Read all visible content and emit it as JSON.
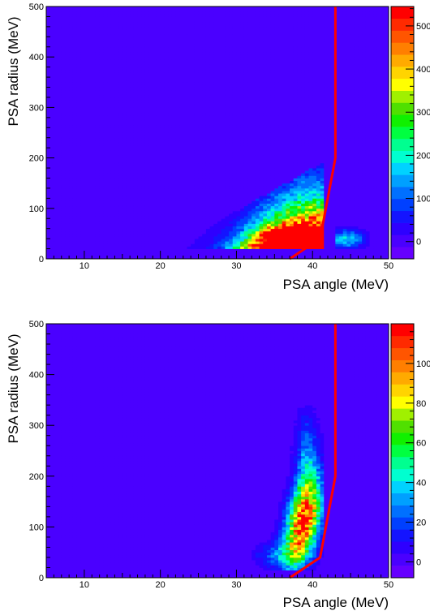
{
  "chart_data": [
    {
      "type": "heatmap",
      "xlabel": "PSA angle (MeV)",
      "ylabel": "PSA radius (MeV)",
      "xlim": [
        5,
        50
      ],
      "ylim": [
        0,
        500
      ],
      "x_ticks": [
        "10",
        "20",
        "30",
        "40",
        "50"
      ],
      "y_ticks": [
        "0",
        "100",
        "200",
        "300",
        "400",
        "500"
      ],
      "z_ticks": [
        "0",
        "100",
        "200",
        "300",
        "400",
        "500"
      ],
      "zlim": [
        -40,
        545
      ],
      "colormap": "rainbow (purple-blue-cyan-green-yellow-orange-red)",
      "cut_line": {
        "color": "#ff0000",
        "x": [
          37,
          41,
          43,
          43
        ],
        "y": [
          0,
          40,
          200,
          500
        ]
      },
      "hotspots": [
        {
          "x": 36,
          "y": 45,
          "value": 530
        },
        {
          "x": 32,
          "y": 45,
          "value": 300
        },
        {
          "x": 38,
          "y": 80,
          "value": 250
        },
        {
          "x": 39,
          "y": 160,
          "value": 120
        },
        {
          "x": 44.5,
          "y": 40,
          "value": 200
        },
        {
          "x": 27,
          "y": 30,
          "value": 70
        }
      ]
    },
    {
      "type": "heatmap",
      "xlabel": "PSA angle (MeV)",
      "ylabel": "PSA radius (MeV)",
      "xlim": [
        5,
        50
      ],
      "ylim": [
        0,
        500
      ],
      "x_ticks": [
        "10",
        "20",
        "30",
        "40",
        "50"
      ],
      "y_ticks": [
        "0",
        "100",
        "200",
        "300",
        "400",
        "500"
      ],
      "z_ticks": [
        "0",
        "20",
        "40",
        "60",
        "80",
        "100"
      ],
      "zlim": [
        -8,
        120
      ],
      "colormap": "rainbow (purple-blue-cyan-green-yellow-orange-red)",
      "cut_line": {
        "color": "#ff0000",
        "x": [
          37,
          41,
          43,
          43
        ],
        "y": [
          0,
          40,
          200,
          500
        ]
      },
      "hotspots": [
        {
          "x": 38.5,
          "y": 110,
          "value": 115
        },
        {
          "x": 39,
          "y": 170,
          "value": 60
        },
        {
          "x": 37.5,
          "y": 60,
          "value": 50
        },
        {
          "x": 39.5,
          "y": 250,
          "value": 20
        }
      ]
    }
  ]
}
